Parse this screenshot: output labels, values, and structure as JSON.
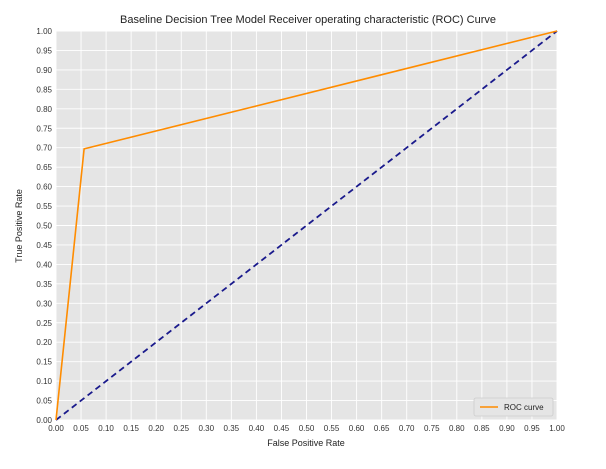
{
  "chart_data": {
    "type": "line",
    "title": "Baseline Decision Tree Model Receiver operating characteristic (ROC) Curve",
    "xlabel": "False Positive Rate",
    "ylabel": "True Positive Rate",
    "xlim": [
      0.0,
      1.0
    ],
    "ylim": [
      0.0,
      1.0
    ],
    "x_ticks": [
      "0.00",
      "0.05",
      "0.10",
      "0.15",
      "0.20",
      "0.25",
      "0.30",
      "0.35",
      "0.40",
      "0.45",
      "0.50",
      "0.55",
      "0.60",
      "0.65",
      "0.70",
      "0.75",
      "0.80",
      "0.85",
      "0.90",
      "0.95",
      "1.00"
    ],
    "y_ticks": [
      "0.00",
      "0.05",
      "0.10",
      "0.15",
      "0.20",
      "0.25",
      "0.30",
      "0.35",
      "0.40",
      "0.45",
      "0.50",
      "0.55",
      "0.60",
      "0.65",
      "0.70",
      "0.75",
      "0.80",
      "0.85",
      "0.90",
      "0.95",
      "1.00"
    ],
    "grid": true,
    "legend_position": "bottom-right",
    "background_color": "#e5e5e5",
    "series": [
      {
        "name": "ROC curve",
        "color": "#ff8c00",
        "style": "solid",
        "x": [
          0.0,
          0.056,
          1.0
        ],
        "y": [
          0.0,
          0.697,
          1.0
        ]
      },
      {
        "color": "#1a1a8c",
        "style": "dashed",
        "x": [
          0.0,
          1.0
        ],
        "y": [
          0.0,
          1.0
        ]
      }
    ]
  }
}
